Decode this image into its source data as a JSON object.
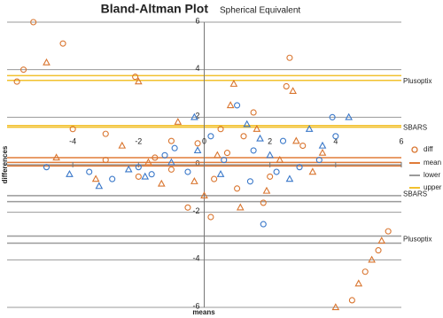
{
  "chart_data": {
    "type": "scatter",
    "title": "Bland-Altman Plot",
    "subtitle": "Spherical Equivalent",
    "x_label": "means",
    "y_label": "differences",
    "xlim": [
      -6,
      6
    ],
    "ylim": [
      -6,
      6
    ],
    "xticks": [
      -4,
      -2,
      0,
      2,
      4,
      6
    ],
    "yticks": [
      -6,
      -4,
      -2,
      0,
      2,
      4,
      6
    ],
    "grid": true,
    "series": [
      {
        "name": "diff",
        "marker": "circle",
        "color": "#d9752f",
        "x": [
          -5.2,
          -4.3,
          -5.5,
          -5.7,
          -2.1,
          2.6,
          2.5,
          -4,
          -3,
          -1,
          0.5,
          1.5,
          1,
          -0.5,
          0.2,
          1.8,
          -2,
          -3,
          0.7,
          3,
          2,
          -1.5,
          0.3,
          4.9,
          5.3,
          5.6,
          4.5,
          -1,
          1.2,
          -0.2
        ],
        "y": [
          6,
          5.1,
          4,
          3.5,
          3.7,
          4.5,
          3.3,
          1.5,
          1.3,
          1,
          1.5,
          2.2,
          -1,
          -1.8,
          -2.2,
          -1.6,
          -0.5,
          0.2,
          0.5,
          0.8,
          -0.5,
          0.3,
          -0.6,
          -4.5,
          -3.6,
          -2.8,
          -5.7,
          -0.2,
          1.2,
          0.9
        ]
      },
      {
        "marker": "triangle",
        "color": "#d9752f",
        "x": [
          -4.8,
          -2,
          2.7,
          4,
          5.1,
          5.4,
          4.7,
          -4.5,
          -2.5,
          -1.3,
          0.8,
          1.6,
          2.3,
          3.3,
          -0.8,
          0,
          1.1,
          -1.7,
          2.8,
          0.4,
          3.6,
          -3.3,
          1.9,
          -0.3,
          0.9
        ],
        "y": [
          4.3,
          3.5,
          3.1,
          -6,
          -4,
          -3.2,
          -5,
          0.3,
          0.8,
          -0.8,
          2.5,
          1.5,
          0.2,
          -0.3,
          1.8,
          -1.3,
          -1.8,
          0.1,
          1,
          0.4,
          0.5,
          -0.6,
          -1.1,
          -0.7,
          3.4
        ]
      },
      {
        "marker": "circle",
        "color": "#3a78c9",
        "x": [
          -3.5,
          -2.8,
          -1.2,
          -0.5,
          0.6,
          1.5,
          2.4,
          3.9,
          4,
          3.5,
          -4.8,
          -2,
          1,
          1.8,
          2.9,
          -1.6,
          0.2,
          -0.9,
          1.4,
          2.2
        ],
        "y": [
          -0.3,
          -0.6,
          0.4,
          -0.3,
          0.2,
          0.6,
          1,
          2,
          1.2,
          0.2,
          -0.1,
          -0.1,
          2.5,
          -2.5,
          -0.1,
          -0.4,
          1.2,
          0.7,
          -0.7,
          -0.3
        ]
      },
      {
        "marker": "triangle",
        "color": "#3a78c9",
        "x": [
          -3.2,
          -0.3,
          1.3,
          4.4,
          3.6,
          -2.3,
          0.5,
          2,
          -4.1,
          -1,
          2.6,
          3.2,
          -0.2,
          1.7,
          -1.8
        ],
        "y": [
          -0.9,
          2,
          1.7,
          2,
          0.8,
          -0.2,
          -0.4,
          0.4,
          -0.4,
          0.1,
          -0.6,
          1.5,
          0.6,
          1.1,
          -0.5
        ]
      }
    ],
    "reference_lines": [
      {
        "name": "mean",
        "color": "#e07b39",
        "values": [
          0.3,
          0.1,
          -0.05
        ]
      },
      {
        "name": "lower",
        "color": "#9a9a9a",
        "values": [
          -1.3,
          -1.55,
          -3,
          -3.3
        ]
      },
      {
        "name": "upper",
        "color": "#f2c12e",
        "values": [
          3.75,
          3.55,
          1.65,
          1.58
        ]
      }
    ],
    "annotations": [
      {
        "text": "Plusoptix",
        "y": 3.5,
        "color": "#d9752f"
      },
      {
        "text": "SBARS",
        "y": 1.55,
        "color": "#3a78c9"
      },
      {
        "text": "SBARS",
        "y": -1.25,
        "color": "#3a78c9"
      },
      {
        "text": "Plusoptix",
        "y": -3.15,
        "color": "#d9752f"
      }
    ]
  }
}
